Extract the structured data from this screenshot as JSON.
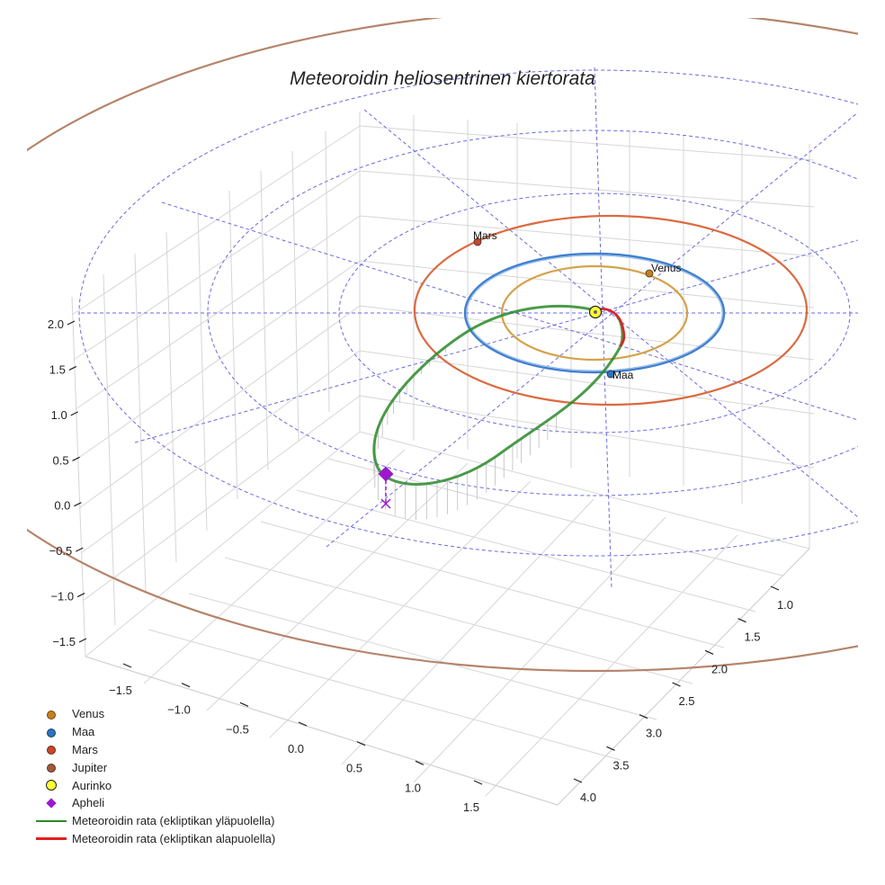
{
  "chart_data": {
    "type": "line",
    "projection": "3d",
    "title": "Meteoroidin heliosentrinen kiertorata",
    "x_ticks": [
      "−1.5",
      "−1.0",
      "−0.5",
      "0.0",
      "0.5",
      "1.0",
      "1.5"
    ],
    "y_ticks": [
      "1.0",
      "1.5",
      "2.0",
      "2.5",
      "3.0",
      "3.5",
      "4.0"
    ],
    "z_ticks": [
      "2.0",
      "1.5",
      "1.0",
      "0.5",
      "0.0",
      "−0.5",
      "−1.0",
      "−1.5"
    ],
    "xlim": [
      -1.7,
      1.7
    ],
    "ylim": [
      0.6,
      4.2
    ],
    "zlim": [
      -1.7,
      2.2
    ],
    "planet_labels": {
      "mars": "Mars",
      "venus": "Venus",
      "maa": "Maa"
    },
    "planets": [
      {
        "name": "Venus",
        "orbit_au": 0.72,
        "color": "#d4a24a",
        "marker_color": "#c97f1c"
      },
      {
        "name": "Maa",
        "orbit_au": 1.0,
        "color": "#3f7fd0",
        "marker_color": "#2a74c0"
      },
      {
        "name": "Mars",
        "orbit_au": 1.52,
        "color": "#db6a40",
        "marker_color": "#c8472a"
      },
      {
        "name": "Jupiter",
        "orbit_au": 5.2,
        "color": "#b5846a",
        "marker_color": "#a05a3a"
      }
    ],
    "sun": {
      "name": "Aurinko",
      "color": "#ffff33"
    },
    "aphelion": {
      "name": "Apheli",
      "color": "#9b19cc"
    },
    "series": [
      {
        "name": "Meteoroidin rata (ekliptikan yläpuolella)",
        "color": "#2a8a2a"
      },
      {
        "name": "Meteoroidin rata (ekliptikan alapuolella)",
        "color": "#e02020"
      }
    ],
    "grid": true,
    "legend_position": "bottom-left"
  },
  "legend": [
    {
      "label": "Venus",
      "kind": "dot",
      "color": "#c97f1c"
    },
    {
      "label": "Maa",
      "kind": "dot",
      "color": "#2a74c0"
    },
    {
      "label": "Mars",
      "kind": "dot",
      "color": "#c8472a"
    },
    {
      "label": "Jupiter",
      "kind": "dot",
      "color": "#a05a3a"
    },
    {
      "label": "Aurinko",
      "kind": "sun",
      "color": "#ffff33"
    },
    {
      "label": "Apheli",
      "kind": "diamond",
      "color": "#9b19cc"
    },
    {
      "label": "Meteoroidin rata (ekliptikan yläpuolella)",
      "kind": "line",
      "color": "#2a8a2a"
    },
    {
      "label": "Meteoroidin rata (ekliptikan alapuolella)",
      "kind": "line",
      "color": "#e02020"
    }
  ]
}
